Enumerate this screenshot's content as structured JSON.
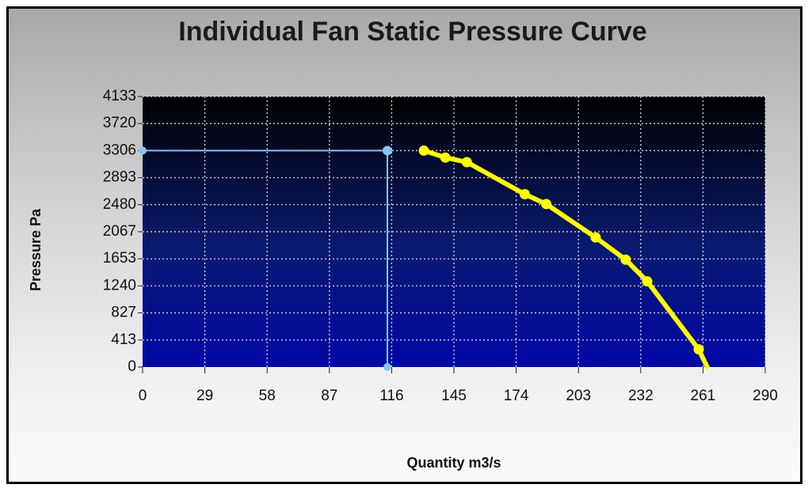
{
  "chart_data": {
    "type": "line",
    "title": "Individual Fan Static Pressure Curve",
    "xlabel": "Quantity m3/s",
    "ylabel": "Pressure Pa",
    "xlim": [
      0,
      290
    ],
    "ylim": [
      0,
      4133
    ],
    "x_ticks": [
      "0",
      "29",
      "58",
      "87",
      "116",
      "145",
      "174",
      "203",
      "232",
      "261",
      "290"
    ],
    "y_ticks": [
      "0",
      "413",
      "827",
      "1240",
      "1653",
      "2067",
      "2480",
      "2893",
      "3306",
      "3720",
      "4133"
    ],
    "grid": true,
    "series": [
      {
        "color": "#ffff00",
        "x": [
          131,
          141,
          151,
          178,
          188,
          211,
          225,
          235,
          259,
          263
        ],
        "y": [
          3306,
          3200,
          3130,
          2640,
          2490,
          1980,
          1640,
          1310,
          270,
          0
        ]
      }
    ],
    "operating_point": {
      "color": "#87c6ef",
      "x": 114,
      "y": 3306
    }
  }
}
